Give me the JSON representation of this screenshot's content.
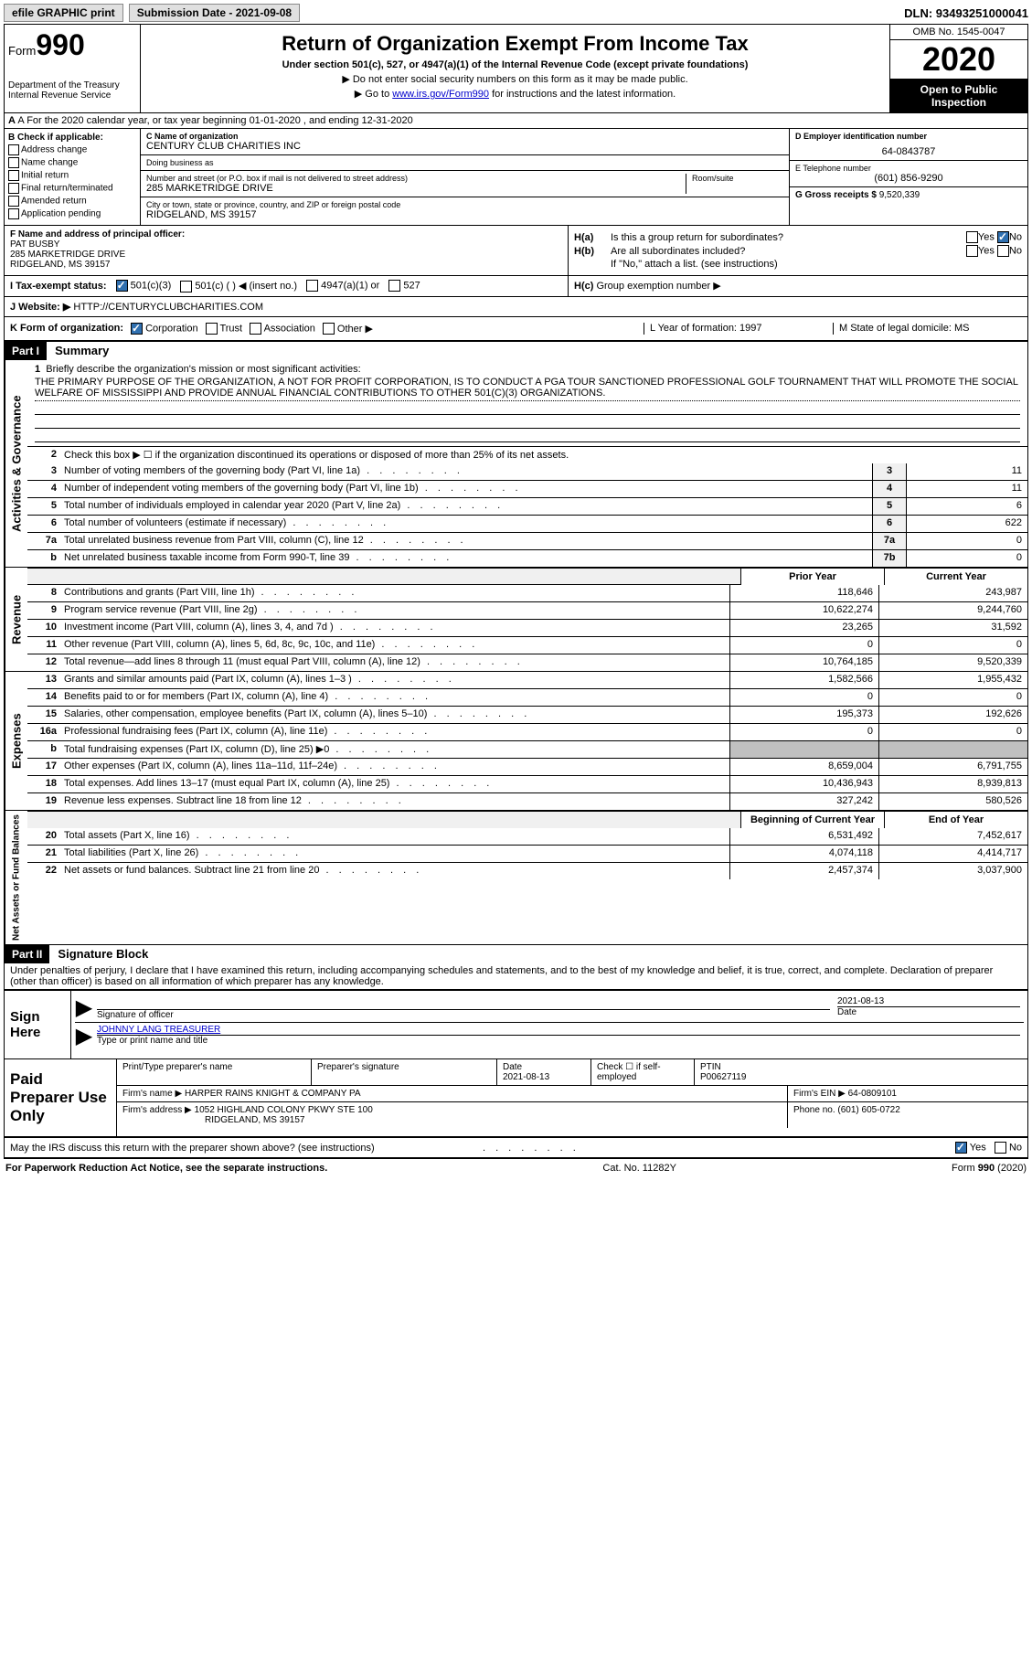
{
  "top": {
    "efile": "efile GRAPHIC print",
    "submission": "Submission Date - 2021-09-08",
    "dln": "DLN: 93493251000041"
  },
  "header": {
    "form_label": "Form",
    "form_num": "990",
    "dept": "Department of the Treasury\nInternal Revenue Service",
    "title": "Return of Organization Exempt From Income Tax",
    "subtitle": "Under section 501(c), 527, or 4947(a)(1) of the Internal Revenue Code (except private foundations)",
    "note1": "▶ Do not enter social security numbers on this form as it may be made public.",
    "note2_pre": "▶ Go to ",
    "note2_link": "www.irs.gov/Form990",
    "note2_post": " for instructions and the latest information.",
    "omb": "OMB No. 1545-0047",
    "year": "2020",
    "inspection": "Open to Public Inspection"
  },
  "rowA": "A For the 2020 calendar year, or tax year beginning 01-01-2020    , and ending 12-31-2020",
  "colB": {
    "header": "B Check if applicable:",
    "items": [
      "Address change",
      "Name change",
      "Initial return",
      "Final return/terminated",
      "Amended return",
      "Application pending"
    ]
  },
  "colC": {
    "name_label": "C Name of organization",
    "name": "CENTURY CLUB CHARITIES INC",
    "dba_label": "Doing business as",
    "dba": "",
    "addr_label": "Number and street (or P.O. box if mail is not delivered to street address)",
    "addr": "285 MARKETRIDGE DRIVE",
    "room_label": "Room/suite",
    "city_label": "City or town, state or province, country, and ZIP or foreign postal code",
    "city": "RIDGELAND, MS  39157"
  },
  "colD": {
    "ein_label": "D Employer identification number",
    "ein": "64-0843787",
    "phone_label": "E Telephone number",
    "phone": "(601) 856-9290",
    "gross_label": "G Gross receipts $",
    "gross": "9,520,339"
  },
  "rowF": {
    "label": "F Name and address of principal officer:",
    "name": "PAT BUSBY",
    "addr": "285 MARKETRIDGE DRIVE",
    "city": "RIDGELAND, MS  39157"
  },
  "rowH": {
    "ha_label": "H(a)",
    "ha_text": "Is this a group return for subordinates?",
    "hb_label": "H(b)",
    "hb_text": "Are all subordinates included?",
    "hb_note": "If \"No,\" attach a list. (see instructions)",
    "hc_label": "H(c)",
    "hc_text": "Group exemption number ▶"
  },
  "rowI": {
    "label": "I   Tax-exempt status:",
    "opts": [
      "501(c)(3)",
      "501(c) (  ) ◀ (insert no.)",
      "4947(a)(1) or",
      "527"
    ]
  },
  "rowJ": {
    "label": "J   Website: ▶",
    "value": "HTTP://CENTURYCLUBCHARITIES.COM"
  },
  "rowK": {
    "label": "K Form of organization:",
    "opts": [
      "Corporation",
      "Trust",
      "Association",
      "Other ▶"
    ],
    "L": "L Year of formation: 1997",
    "M": "M State of legal domicile: MS"
  },
  "part1": {
    "header": "Part I",
    "title": "Summary",
    "side_gov": "Activities & Governance",
    "side_rev": "Revenue",
    "side_exp": "Expenses",
    "side_net": "Net Assets or Fund Balances",
    "line1_label": "Briefly describe the organization's mission or most significant activities:",
    "line1_text": "THE PRIMARY PURPOSE OF THE ORGANIZATION, A NOT FOR PROFIT CORPORATION, IS TO CONDUCT A PGA TOUR SANCTIONED PROFESSIONAL GOLF TOURNAMENT THAT WILL PROMOTE THE SOCIAL WELFARE OF MISSISSIPPI AND PROVIDE ANNUAL FINANCIAL CONTRIBUTIONS TO OTHER 501(C)(3) ORGANIZATIONS.",
    "line2": "Check this box ▶ ☐  if the organization discontinued its operations or disposed of more than 25% of its net assets.",
    "lines_gov": [
      {
        "n": "3",
        "t": "Number of voting members of the governing body (Part VI, line 1a)",
        "box": "3",
        "v": "11"
      },
      {
        "n": "4",
        "t": "Number of independent voting members of the governing body (Part VI, line 1b)",
        "box": "4",
        "v": "11"
      },
      {
        "n": "5",
        "t": "Total number of individuals employed in calendar year 2020 (Part V, line 2a)",
        "box": "5",
        "v": "6"
      },
      {
        "n": "6",
        "t": "Total number of volunteers (estimate if necessary)",
        "box": "6",
        "v": "622"
      },
      {
        "n": "7a",
        "t": "Total unrelated business revenue from Part VIII, column (C), line 12",
        "box": "7a",
        "v": "0"
      },
      {
        "n": "b",
        "t": "Net unrelated business taxable income from Form 990-T, line 39",
        "box": "7b",
        "v": "0"
      }
    ],
    "col_prior": "Prior Year",
    "col_current": "Current Year",
    "lines_rev": [
      {
        "n": "8",
        "t": "Contributions and grants (Part VIII, line 1h)",
        "p": "118,646",
        "c": "243,987"
      },
      {
        "n": "9",
        "t": "Program service revenue (Part VIII, line 2g)",
        "p": "10,622,274",
        "c": "9,244,760"
      },
      {
        "n": "10",
        "t": "Investment income (Part VIII, column (A), lines 3, 4, and 7d )",
        "p": "23,265",
        "c": "31,592"
      },
      {
        "n": "11",
        "t": "Other revenue (Part VIII, column (A), lines 5, 6d, 8c, 9c, 10c, and 11e)",
        "p": "0",
        "c": "0"
      },
      {
        "n": "12",
        "t": "Total revenue—add lines 8 through 11 (must equal Part VIII, column (A), line 12)",
        "p": "10,764,185",
        "c": "9,520,339"
      }
    ],
    "lines_exp": [
      {
        "n": "13",
        "t": "Grants and similar amounts paid (Part IX, column (A), lines 1–3 )",
        "p": "1,582,566",
        "c": "1,955,432"
      },
      {
        "n": "14",
        "t": "Benefits paid to or for members (Part IX, column (A), line 4)",
        "p": "0",
        "c": "0"
      },
      {
        "n": "15",
        "t": "Salaries, other compensation, employee benefits (Part IX, column (A), lines 5–10)",
        "p": "195,373",
        "c": "192,626"
      },
      {
        "n": "16a",
        "t": "Professional fundraising fees (Part IX, column (A), line 11e)",
        "p": "0",
        "c": "0"
      },
      {
        "n": "b",
        "t": "Total fundraising expenses (Part IX, column (D), line 25) ▶0",
        "p": "",
        "c": "",
        "grey": true
      },
      {
        "n": "17",
        "t": "Other expenses (Part IX, column (A), lines 11a–11d, 11f–24e)",
        "p": "8,659,004",
        "c": "6,791,755"
      },
      {
        "n": "18",
        "t": "Total expenses. Add lines 13–17 (must equal Part IX, column (A), line 25)",
        "p": "10,436,943",
        "c": "8,939,813"
      },
      {
        "n": "19",
        "t": "Revenue less expenses. Subtract line 18 from line 12",
        "p": "327,242",
        "c": "580,526"
      }
    ],
    "col_begin": "Beginning of Current Year",
    "col_end": "End of Year",
    "lines_net": [
      {
        "n": "20",
        "t": "Total assets (Part X, line 16)",
        "p": "6,531,492",
        "c": "7,452,617"
      },
      {
        "n": "21",
        "t": "Total liabilities (Part X, line 26)",
        "p": "4,074,118",
        "c": "4,414,717"
      },
      {
        "n": "22",
        "t": "Net assets or fund balances. Subtract line 21 from line 20",
        "p": "2,457,374",
        "c": "3,037,900"
      }
    ]
  },
  "part2": {
    "header": "Part II",
    "title": "Signature Block",
    "perjury": "Under penalties of perjury, I declare that I have examined this return, including accompanying schedules and statements, and to the best of my knowledge and belief, it is true, correct, and complete. Declaration of preparer (other than officer) is based on all information of which preparer has any knowledge.",
    "sign_here": "Sign Here",
    "sig_officer": "Signature of officer",
    "sig_date": "2021-08-13",
    "date_label": "Date",
    "officer_name": "JOHNNY LANG  TREASURER",
    "officer_label": "Type or print name and title",
    "paid": "Paid Preparer Use Only",
    "prep_name_label": "Print/Type preparer's name",
    "prep_sig_label": "Preparer's signature",
    "prep_date_label": "Date",
    "prep_date": "2021-08-13",
    "check_if": "Check ☐ if self-employed",
    "ptin_label": "PTIN",
    "ptin": "P00627119",
    "firm_name_label": "Firm's name    ▶",
    "firm_name": "HARPER RAINS KNIGHT & COMPANY PA",
    "firm_ein_label": "Firm's EIN ▶",
    "firm_ein": "64-0809101",
    "firm_addr_label": "Firm's address ▶",
    "firm_addr": "1052 HIGHLAND COLONY PKWY STE 100",
    "firm_city": "RIDGELAND, MS  39157",
    "phone_label": "Phone no.",
    "phone": "(601) 605-0722",
    "discuss": "May the IRS discuss this return with the preparer shown above? (see instructions)"
  },
  "footer": {
    "left": "For Paperwork Reduction Act Notice, see the separate instructions.",
    "mid": "Cat. No. 11282Y",
    "right": "Form 990 (2020)"
  }
}
